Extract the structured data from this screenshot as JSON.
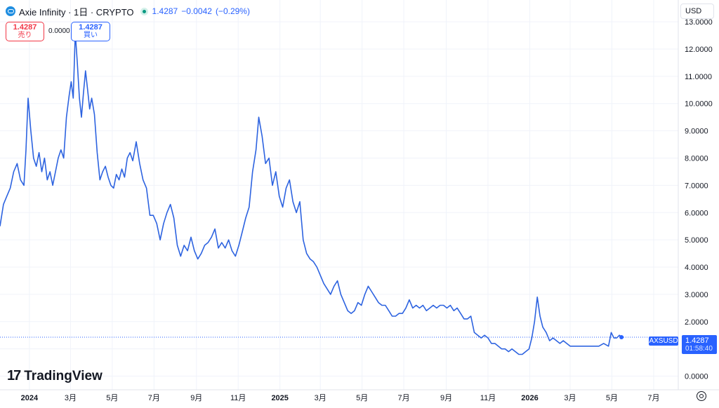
{
  "header": {
    "symbol_title": "Axie Infinity · 1日 · CRYPTO",
    "price": "1.4287",
    "change": "−0.0042",
    "change_pct": "(−0.29%)"
  },
  "trade": {
    "sell_price": "1.4287",
    "sell_label": "売り",
    "spread": "0.0000",
    "buy_price": "1.4287",
    "buy_label": "買い"
  },
  "currency_button": "USD",
  "price_tag": {
    "symbol": "AXSUSD",
    "price": "1.4287",
    "countdown": "01:58:40"
  },
  "brand": "TradingView",
  "colors": {
    "line": "#2d63e0",
    "accent": "#2962ff",
    "sell": "#f23645"
  },
  "chart_data": {
    "type": "line",
    "title": "",
    "xlabel": "",
    "ylabel": "",
    "ylim": [
      -0.5,
      13.8
    ],
    "grid": true,
    "y_ticks": [
      "0.0000",
      "1.0000",
      "2.0000",
      "3.0000",
      "4.0000",
      "5.0000",
      "6.0000",
      "7.0000",
      "8.0000",
      "9.0000",
      "10.0000",
      "11.0000",
      "12.0000",
      "13.0000"
    ],
    "x_ticks": [
      {
        "label": "2024",
        "date": "2024-01-01",
        "year": true
      },
      {
        "label": "3月",
        "date": "2024-03-01"
      },
      {
        "label": "5月",
        "date": "2024-05-01"
      },
      {
        "label": "7月",
        "date": "2024-07-01"
      },
      {
        "label": "9月",
        "date": "2024-09-01"
      },
      {
        "label": "11月",
        "date": "2024-11-01"
      },
      {
        "label": "2025",
        "date": "2025-01-01",
        "year": true
      },
      {
        "label": "3月",
        "date": "2025-03-01"
      },
      {
        "label": "5月",
        "date": "2025-05-01"
      },
      {
        "label": "7月",
        "date": "2025-07-01"
      },
      {
        "label": "9月",
        "date": "2025-09-01"
      },
      {
        "label": "11月",
        "date": "2025-11-01"
      },
      {
        "label": "2026",
        "date": "2026-01-01",
        "year": true
      },
      {
        "label": "3月",
        "date": "2026-03-01"
      },
      {
        "label": "5月",
        "date": "2026-05-01"
      },
      {
        "label": "7月",
        "date": "2026-07-01"
      }
    ],
    "xlim": [
      "2023-11-19",
      "2026-08-06"
    ],
    "current_price": 1.4287,
    "series": [
      {
        "points": [
          [
            "2023-11-19",
            5.5
          ],
          [
            "2023-11-24",
            6.3
          ],
          [
            "2023-11-29",
            6.6
          ],
          [
            "2023-12-04",
            6.9
          ],
          [
            "2023-12-09",
            7.5
          ],
          [
            "2023-12-14",
            7.8
          ],
          [
            "2023-12-19",
            7.2
          ],
          [
            "2023-12-24",
            7.0
          ],
          [
            "2023-12-27",
            8.3
          ],
          [
            "2023-12-30",
            10.2
          ],
          [
            "2024-01-03",
            9.0
          ],
          [
            "2024-01-07",
            8.0
          ],
          [
            "2024-01-11",
            7.7
          ],
          [
            "2024-01-15",
            8.2
          ],
          [
            "2024-01-19",
            7.5
          ],
          [
            "2024-01-23",
            8.0
          ],
          [
            "2024-01-27",
            7.2
          ],
          [
            "2024-01-31",
            7.5
          ],
          [
            "2024-02-04",
            7.0
          ],
          [
            "2024-02-08",
            7.5
          ],
          [
            "2024-02-12",
            8.0
          ],
          [
            "2024-02-16",
            8.3
          ],
          [
            "2024-02-20",
            8.0
          ],
          [
            "2024-02-24",
            9.5
          ],
          [
            "2024-02-28",
            10.3
          ],
          [
            "2024-03-02",
            10.8
          ],
          [
            "2024-03-05",
            10.2
          ],
          [
            "2024-03-08",
            12.6
          ],
          [
            "2024-03-11",
            11.5
          ],
          [
            "2024-03-14",
            10.2
          ],
          [
            "2024-03-17",
            9.5
          ],
          [
            "2024-03-20",
            10.4
          ],
          [
            "2024-03-23",
            11.2
          ],
          [
            "2024-03-26",
            10.5
          ],
          [
            "2024-03-29",
            9.8
          ],
          [
            "2024-04-01",
            10.2
          ],
          [
            "2024-04-05",
            9.6
          ],
          [
            "2024-04-09",
            8.2
          ],
          [
            "2024-04-13",
            7.2
          ],
          [
            "2024-04-17",
            7.5
          ],
          [
            "2024-04-21",
            7.7
          ],
          [
            "2024-04-25",
            7.3
          ],
          [
            "2024-04-29",
            7.0
          ],
          [
            "2024-05-03",
            6.9
          ],
          [
            "2024-05-07",
            7.4
          ],
          [
            "2024-05-11",
            7.2
          ],
          [
            "2024-05-15",
            7.6
          ],
          [
            "2024-05-19",
            7.3
          ],
          [
            "2024-05-23",
            8.0
          ],
          [
            "2024-05-27",
            8.2
          ],
          [
            "2024-05-31",
            7.9
          ],
          [
            "2024-06-05",
            8.6
          ],
          [
            "2024-06-10",
            7.8
          ],
          [
            "2024-06-15",
            7.2
          ],
          [
            "2024-06-20",
            6.9
          ],
          [
            "2024-06-25",
            5.9
          ],
          [
            "2024-06-30",
            5.9
          ],
          [
            "2024-07-05",
            5.6
          ],
          [
            "2024-07-10",
            5.0
          ],
          [
            "2024-07-15",
            5.6
          ],
          [
            "2024-07-20",
            6.0
          ],
          [
            "2024-07-25",
            6.3
          ],
          [
            "2024-07-30",
            5.8
          ],
          [
            "2024-08-04",
            4.8
          ],
          [
            "2024-08-09",
            4.4
          ],
          [
            "2024-08-14",
            4.8
          ],
          [
            "2024-08-19",
            4.6
          ],
          [
            "2024-08-24",
            5.1
          ],
          [
            "2024-08-29",
            4.6
          ],
          [
            "2024-09-03",
            4.3
          ],
          [
            "2024-09-08",
            4.5
          ],
          [
            "2024-09-13",
            4.8
          ],
          [
            "2024-09-18",
            4.9
          ],
          [
            "2024-09-23",
            5.1
          ],
          [
            "2024-09-28",
            5.4
          ],
          [
            "2024-10-03",
            4.7
          ],
          [
            "2024-10-08",
            4.9
          ],
          [
            "2024-10-13",
            4.7
          ],
          [
            "2024-10-18",
            5.0
          ],
          [
            "2024-10-23",
            4.6
          ],
          [
            "2024-10-28",
            4.4
          ],
          [
            "2024-11-02",
            4.8
          ],
          [
            "2024-11-07",
            5.3
          ],
          [
            "2024-11-12",
            5.8
          ],
          [
            "2024-11-17",
            6.2
          ],
          [
            "2024-11-22",
            7.5
          ],
          [
            "2024-11-27",
            8.3
          ],
          [
            "2024-12-01",
            9.5
          ],
          [
            "2024-12-06",
            8.8
          ],
          [
            "2024-12-11",
            7.8
          ],
          [
            "2024-12-16",
            8.0
          ],
          [
            "2024-12-21",
            7.0
          ],
          [
            "2024-12-26",
            7.5
          ],
          [
            "2024-12-31",
            6.6
          ],
          [
            "2025-01-05",
            6.2
          ],
          [
            "2025-01-10",
            6.9
          ],
          [
            "2025-01-15",
            7.2
          ],
          [
            "2025-01-20",
            6.4
          ],
          [
            "2025-01-25",
            6.0
          ],
          [
            "2025-01-30",
            6.4
          ],
          [
            "2025-02-04",
            5.0
          ],
          [
            "2025-02-09",
            4.5
          ],
          [
            "2025-02-14",
            4.3
          ],
          [
            "2025-02-19",
            4.2
          ],
          [
            "2025-02-24",
            4.0
          ],
          [
            "2025-03-01",
            3.7
          ],
          [
            "2025-03-06",
            3.4
          ],
          [
            "2025-03-11",
            3.2
          ],
          [
            "2025-03-16",
            3.0
          ],
          [
            "2025-03-21",
            3.3
          ],
          [
            "2025-03-26",
            3.5
          ],
          [
            "2025-03-31",
            3.0
          ],
          [
            "2025-04-05",
            2.7
          ],
          [
            "2025-04-10",
            2.4
          ],
          [
            "2025-04-15",
            2.3
          ],
          [
            "2025-04-20",
            2.4
          ],
          [
            "2025-04-25",
            2.7
          ],
          [
            "2025-04-30",
            2.6
          ],
          [
            "2025-05-05",
            3.0
          ],
          [
            "2025-05-10",
            3.3
          ],
          [
            "2025-05-15",
            3.1
          ],
          [
            "2025-05-20",
            2.9
          ],
          [
            "2025-05-25",
            2.7
          ],
          [
            "2025-05-30",
            2.6
          ],
          [
            "2025-06-04",
            2.6
          ],
          [
            "2025-06-09",
            2.4
          ],
          [
            "2025-06-14",
            2.2
          ],
          [
            "2025-06-19",
            2.2
          ],
          [
            "2025-06-24",
            2.3
          ],
          [
            "2025-06-29",
            2.3
          ],
          [
            "2025-07-04",
            2.5
          ],
          [
            "2025-07-09",
            2.8
          ],
          [
            "2025-07-14",
            2.5
          ],
          [
            "2025-07-19",
            2.6
          ],
          [
            "2025-07-24",
            2.5
          ],
          [
            "2025-07-29",
            2.6
          ],
          [
            "2025-08-03",
            2.4
          ],
          [
            "2025-08-08",
            2.5
          ],
          [
            "2025-08-13",
            2.6
          ],
          [
            "2025-08-18",
            2.5
          ],
          [
            "2025-08-23",
            2.6
          ],
          [
            "2025-08-28",
            2.6
          ],
          [
            "2025-09-02",
            2.5
          ],
          [
            "2025-09-07",
            2.6
          ],
          [
            "2025-09-12",
            2.4
          ],
          [
            "2025-09-17",
            2.5
          ],
          [
            "2025-09-22",
            2.3
          ],
          [
            "2025-09-27",
            2.1
          ],
          [
            "2025-10-02",
            2.1
          ],
          [
            "2025-10-07",
            2.2
          ],
          [
            "2025-10-12",
            1.6
          ],
          [
            "2025-10-17",
            1.5
          ],
          [
            "2025-10-22",
            1.4
          ],
          [
            "2025-10-27",
            1.5
          ],
          [
            "2025-11-01",
            1.4
          ],
          [
            "2025-11-06",
            1.2
          ],
          [
            "2025-11-11",
            1.2
          ],
          [
            "2025-11-16",
            1.1
          ],
          [
            "2025-11-21",
            1.0
          ],
          [
            "2025-11-26",
            1.0
          ],
          [
            "2025-12-01",
            0.9
          ],
          [
            "2025-12-06",
            1.0
          ],
          [
            "2025-12-11",
            0.9
          ],
          [
            "2025-12-16",
            0.8
          ],
          [
            "2025-12-21",
            0.8
          ],
          [
            "2025-12-26",
            0.9
          ],
          [
            "2025-12-31",
            1.0
          ],
          [
            "2026-01-04",
            1.4
          ],
          [
            "2026-01-08",
            2.0
          ],
          [
            "2026-01-12",
            2.9
          ],
          [
            "2026-01-16",
            2.2
          ],
          [
            "2026-01-20",
            1.8
          ],
          [
            "2026-01-25",
            1.6
          ],
          [
            "2026-01-30",
            1.3
          ],
          [
            "2026-02-04",
            1.4
          ],
          [
            "2026-02-09",
            1.3
          ],
          [
            "2026-02-14",
            1.2
          ],
          [
            "2026-02-19",
            1.3
          ],
          [
            "2026-02-24",
            1.2
          ],
          [
            "2026-03-01",
            1.1
          ],
          [
            "2026-03-08",
            1.1
          ],
          [
            "2026-03-15",
            1.1
          ],
          [
            "2026-03-22",
            1.1
          ],
          [
            "2026-03-29",
            1.1
          ],
          [
            "2026-04-05",
            1.1
          ],
          [
            "2026-04-12",
            1.1
          ],
          [
            "2026-04-19",
            1.2
          ],
          [
            "2026-04-26",
            1.1
          ],
          [
            "2026-04-30",
            1.6
          ],
          [
            "2026-05-04",
            1.4
          ],
          [
            "2026-05-08",
            1.4
          ],
          [
            "2026-05-12",
            1.5
          ],
          [
            "2026-05-15",
            1.4287
          ]
        ]
      }
    ]
  }
}
